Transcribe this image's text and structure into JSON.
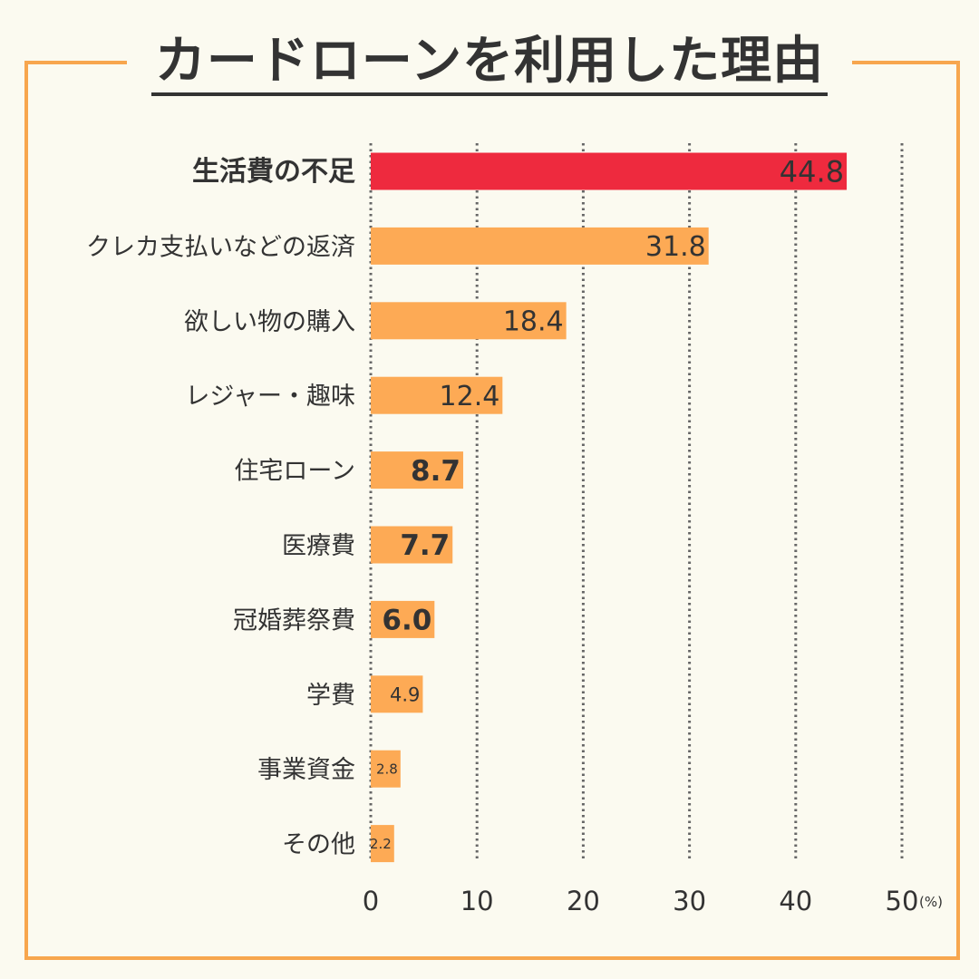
{
  "title": "カードローンを利用した理由",
  "colors": {
    "background": "#FBFAF0",
    "frame": "#F7A64E",
    "bar": "#FDAA55",
    "highlight_bar": "#EE2A3E",
    "grid": "#666666",
    "text": "#333333"
  },
  "chart_data": {
    "type": "bar",
    "orientation": "horizontal",
    "title": "カードローンを利用した理由",
    "categories": [
      "生活費の不足",
      "クレカ支払いなどの返済",
      "欲しい物の購入",
      "レジャー・趣味",
      "住宅ローン",
      "医療費",
      "冠婚葬祭費",
      "学費",
      "事業資金",
      "その他"
    ],
    "values": [
      44.8,
      31.8,
      18.4,
      12.4,
      8.7,
      7.7,
      6.0,
      4.9,
      2.8,
      2.2
    ],
    "value_labels": [
      "44.8",
      "31.8",
      "18.4",
      "12.4",
      "8.7",
      "7.7",
      "6.0",
      "4.9",
      "2.8",
      "2.2"
    ],
    "highlight_index": 0,
    "xlim": [
      0,
      50
    ],
    "xticks": [
      "0",
      "10",
      "20",
      "30",
      "40",
      "50"
    ],
    "unit": "(%)",
    "grid": "vertical dotted"
  }
}
